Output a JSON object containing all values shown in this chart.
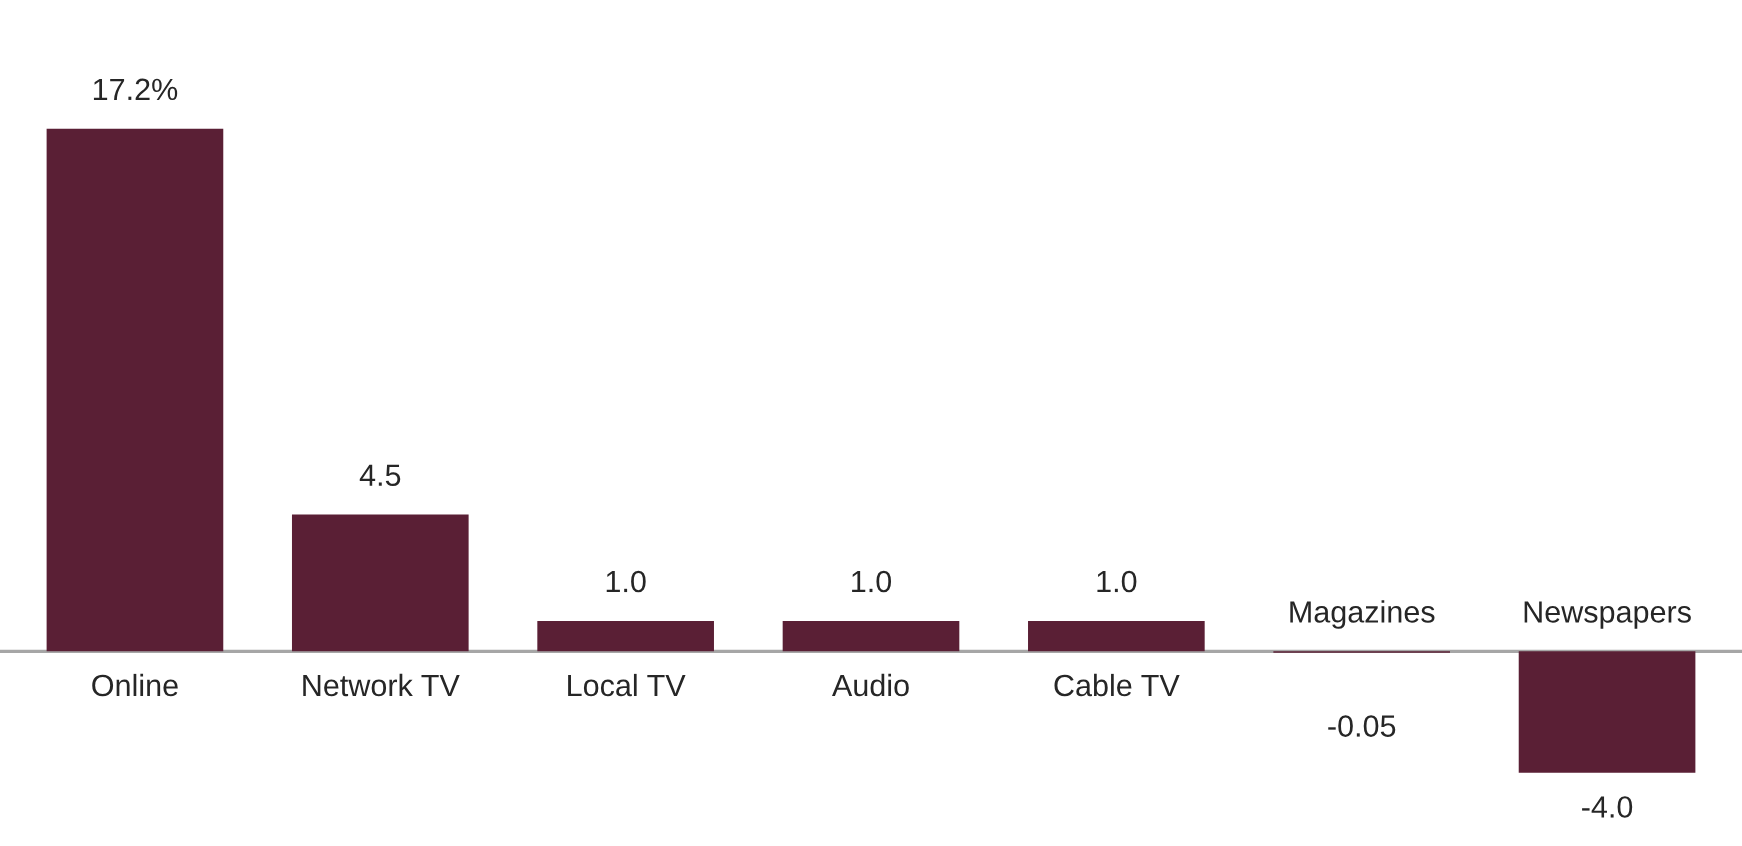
{
  "chart_data": {
    "type": "bar",
    "categories": [
      "Online",
      "Network TV",
      "Local TV",
      "Audio",
      "Cable TV",
      "Magazines",
      "Newspapers"
    ],
    "values": [
      17.2,
      4.5,
      1.0,
      1.0,
      1.0,
      -0.05,
      -4.0
    ],
    "value_labels": [
      "17.2%",
      "4.5",
      "1.0",
      "1.0",
      "1.0",
      "-0.05",
      "-4.0"
    ],
    "color": "#5a1f35"
  }
}
